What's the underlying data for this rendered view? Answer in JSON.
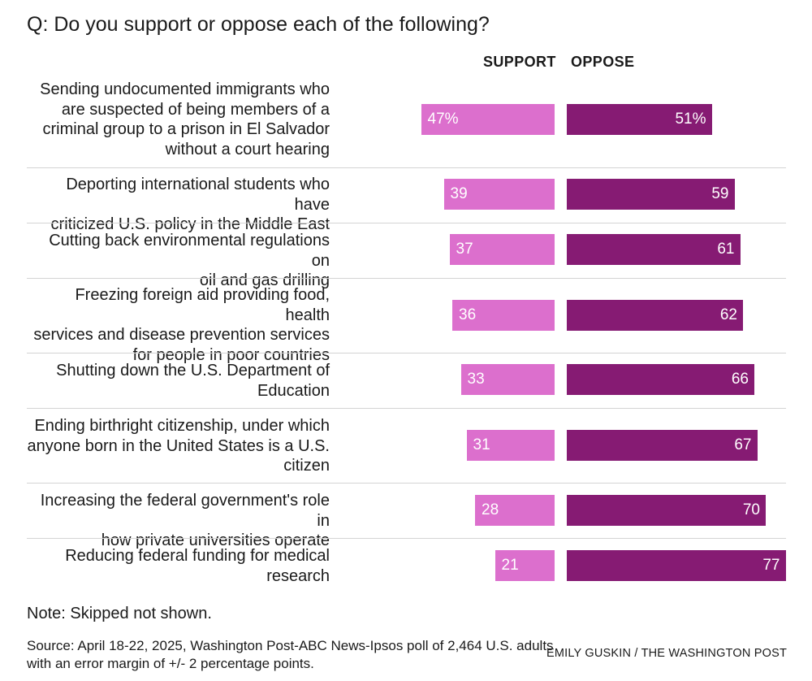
{
  "question": "Q: Do you support or oppose each of the following?",
  "chart_data": {
    "type": "bar",
    "title": "Q: Do you support or oppose each of the following?",
    "orientation": "horizontal-diverging",
    "categories": [
      "Sending undocumented immigrants who are suspected of being members of a criminal group to a prison in El Salvador without a court hearing",
      "Deporting international students who have criticized U.S. policy in the Middle East",
      "Cutting back environmental regulations on oil and gas drilling",
      "Freezing foreign aid providing food, health services and disease prevention services for people in poor countries",
      "Shutting down the U.S. Department of Education",
      "Ending birthright citizenship, under which anyone born in the United States is a U.S. citizen",
      "Increasing the federal government's role in how private universities operate",
      "Reducing federal funding for medical research"
    ],
    "series": [
      {
        "name": "SUPPORT",
        "color": "#dc6fcd",
        "values": [
          47,
          39,
          37,
          36,
          33,
          31,
          28,
          21
        ],
        "labels": [
          "47%",
          "39",
          "37",
          "36",
          "33",
          "31",
          "28",
          "21"
        ]
      },
      {
        "name": "OPPOSE",
        "color": "#861b73",
        "values": [
          51,
          59,
          61,
          62,
          66,
          67,
          70,
          77
        ],
        "labels": [
          "51%",
          "59",
          "61",
          "62",
          "66",
          "67",
          "70",
          "77"
        ]
      }
    ],
    "xlim": [
      0,
      100
    ],
    "unit": "%"
  },
  "note": "Note: Skipped not shown.",
  "source": "Source: April 18-22, 2025, Washington Post-ABC News-Ipsos poll of 2,464 U.S. adults with an error margin of +/- 2 percentage points.",
  "credit": "EMILY GUSKIN / THE WASHINGTON POST"
}
